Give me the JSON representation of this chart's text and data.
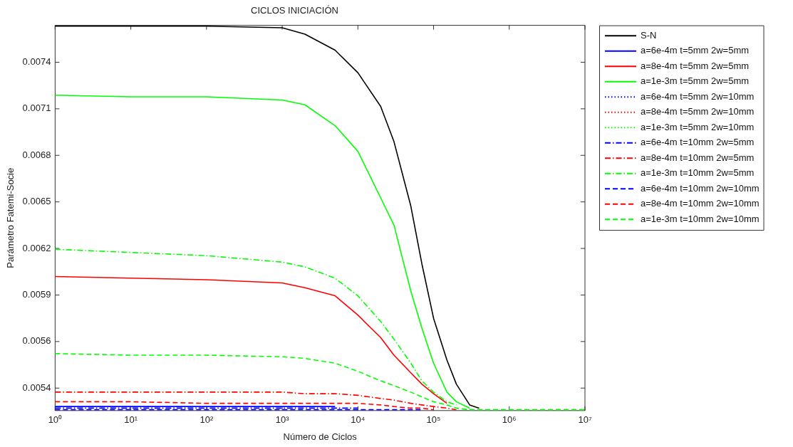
{
  "chart_data": {
    "type": "line",
    "title": "CICLOS INICIACIÓN",
    "xlabel": "Número de Ciclos",
    "ylabel": "Parámetro Fatemi-Socie",
    "log": "x",
    "grid": false,
    "legend": "right",
    "x": [
      1,
      10,
      100,
      1000,
      2000,
      5000,
      10000,
      20000,
      30000,
      50000,
      70000,
      100000,
      150000,
      200000,
      300000,
      400000,
      1000000,
      10000000
    ],
    "xlim": [
      1,
      10000000
    ],
    "xticks": [
      {
        "value": 1,
        "label": "10⁰"
      },
      {
        "value": 10,
        "label": "10¹"
      },
      {
        "value": 100,
        "label": "10²"
      },
      {
        "value": 1000,
        "label": "10³"
      },
      {
        "value": 10000,
        "label": "10⁴"
      },
      {
        "value": 100000,
        "label": "10⁵"
      },
      {
        "value": 1000000,
        "label": "10⁶"
      },
      {
        "value": 10000000,
        "label": "10⁷"
      }
    ],
    "ylim": [
      0.005215,
      0.007615
    ],
    "yticks": [
      {
        "value": 0.005355,
        "label": "0.0054"
      },
      {
        "value": 0.005645,
        "label": "0.0056"
      },
      {
        "value": 0.005935,
        "label": "0.0059"
      },
      {
        "value": 0.006225,
        "label": "0.0062"
      },
      {
        "value": 0.006515,
        "label": "0.0065"
      },
      {
        "value": 0.006805,
        "label": "0.0068"
      },
      {
        "value": 0.007095,
        "label": "0.0071"
      },
      {
        "value": 0.007385,
        "label": "0.0074"
      }
    ],
    "series": [
      {
        "name": "S-N",
        "color": "#000000",
        "line_style": "solid",
        "values": [
          0.00761,
          0.00761,
          0.00761,
          0.0076,
          0.00756,
          0.00746,
          0.00732,
          0.00711,
          0.00689,
          0.00649,
          0.00613,
          0.00579,
          0.00553,
          0.00538,
          0.00525,
          0.00523,
          null,
          null
        ]
      },
      {
        "name": "a=6e-4m t=5mm 2w=5mm",
        "color": "#0000ff",
        "line_style": "solid",
        "values": [
          0.00524,
          0.00524,
          0.00524,
          0.00524,
          0.00524,
          0.00524,
          null,
          null,
          null,
          null,
          null,
          null,
          null,
          null,
          null,
          null,
          null,
          null
        ]
      },
      {
        "name": "a=8e-4m t=5mm 2w=5mm",
        "color": "#ff0000",
        "line_style": "solid",
        "values": [
          0.00605,
          0.00604,
          0.00603,
          0.00601,
          0.00598,
          0.00593,
          0.00581,
          0.00567,
          0.00556,
          0.00545,
          0.00538,
          0.00532,
          0.00526,
          null,
          null,
          null,
          null,
          null
        ]
      },
      {
        "name": "a=1e-3m t=5mm 2w=5mm",
        "color": "#00ff00",
        "line_style": "solid",
        "values": [
          0.00718,
          0.00717,
          0.00717,
          0.00715,
          0.00712,
          0.00699,
          0.00683,
          0.00654,
          0.00637,
          0.00596,
          0.00573,
          0.00551,
          0.00533,
          0.00527,
          0.00523,
          null,
          null,
          null
        ]
      },
      {
        "name": "a=6e-4m t=5mm 2w=10mm",
        "color": "#0000ff",
        "line_style": "dotted",
        "values": [
          null,
          null,
          null,
          null,
          null,
          null,
          null,
          null,
          null,
          null,
          null,
          null,
          null,
          null,
          null,
          null,
          null,
          null
        ]
      },
      {
        "name": "a=8e-4m t=5mm 2w=10mm",
        "color": "#ff0000",
        "line_style": "dotted",
        "values": [
          null,
          null,
          null,
          null,
          null,
          null,
          null,
          null,
          null,
          null,
          null,
          null,
          null,
          null,
          null,
          null,
          null,
          null
        ]
      },
      {
        "name": "a=1e-3m t=5mm 2w=10mm",
        "color": "#00ff00",
        "line_style": "dotted",
        "values": [
          null,
          null,
          null,
          null,
          null,
          null,
          null,
          null,
          null,
          null,
          null,
          null,
          null,
          null,
          null,
          null,
          null,
          null
        ]
      },
      {
        "name": "a=6e-4m t=10mm 2w=5mm",
        "color": "#0000ff",
        "line_style": "dashdot",
        "values": [
          0.00523,
          0.00523,
          0.00523,
          0.00523,
          0.00523,
          0.00523,
          0.00523,
          null,
          null,
          null,
          null,
          null,
          null,
          null,
          null,
          null,
          null,
          null
        ]
      },
      {
        "name": "a=8e-4m t=10mm 2w=5mm",
        "color": "#ff0000",
        "line_style": "dashdot",
        "values": [
          0.00533,
          0.00533,
          0.00533,
          0.00533,
          0.00532,
          0.00532,
          0.00531,
          0.00529,
          0.00528,
          0.00526,
          0.00525,
          0.00524,
          0.00523,
          0.00522,
          null,
          null,
          null,
          null
        ]
      },
      {
        "name": "a=1e-3m t=10mm 2w=5mm",
        "color": "#00ff00",
        "line_style": "dashdot",
        "values": [
          0.00622,
          0.0062,
          0.00618,
          0.00614,
          0.00611,
          0.00604,
          0.00593,
          0.00577,
          0.00566,
          0.00551,
          0.0054,
          0.00533,
          0.00527,
          0.00525,
          null,
          null,
          null,
          null
        ]
      },
      {
        "name": "a=6e-4m t=10mm 2w=10mm",
        "color": "#0000ff",
        "line_style": "dashed",
        "values": [
          0.00522,
          0.00522,
          0.00522,
          0.00522,
          0.00522,
          0.00522,
          0.00522,
          0.00522,
          0.00522,
          0.00522,
          0.00522,
          null,
          null,
          null,
          null,
          null,
          null,
          null
        ]
      },
      {
        "name": "a=8e-4m t=10mm 2w=10mm",
        "color": "#ff0000",
        "line_style": "dashed",
        "values": [
          0.00527,
          0.00527,
          0.00526,
          0.00526,
          0.00526,
          0.00526,
          0.00526,
          0.00525,
          0.00524,
          0.00523,
          0.00523,
          0.00522,
          null,
          null,
          null,
          null,
          null,
          null
        ]
      },
      {
        "name": "a=1e-3m t=10mm 2w=10mm",
        "color": "#00ff00",
        "line_style": "dashed",
        "values": [
          0.00557,
          0.00556,
          0.00556,
          0.00555,
          0.00554,
          0.00551,
          0.00546,
          0.0054,
          0.00537,
          0.00533,
          0.0053,
          0.00527,
          0.00525,
          0.00523,
          0.00522,
          0.00522,
          0.00522,
          0.00522
        ]
      }
    ]
  }
}
